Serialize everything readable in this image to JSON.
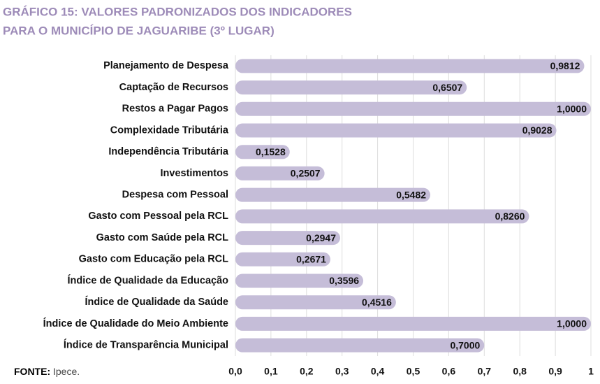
{
  "chart_data": {
    "type": "bar",
    "orientation": "horizontal",
    "title": [
      "GRÁFICO 15: VALORES PADRONIZADOS DOS INDICADORES",
      "PARA O MUNICÍPIO DE JAGUARIBE (3º LUGAR)"
    ],
    "categories": [
      "Planejamento de Despesa",
      "Captação de Recursos",
      "Restos a Pagar Pagos",
      "Complexidade Tributária",
      "Independência Tributária",
      "Investimentos",
      "Despesa com Pessoal",
      "Gasto com Pessoal pela RCL",
      "Gasto com Saúde pela RCL",
      "Gasto com Educação pela RCL",
      "Índice de Qualidade da Educação",
      "Índice de Qualidade da Saúde",
      "Índice de Qualidade do Meio Ambiente",
      "Índice de Transparência Municipal"
    ],
    "values": [
      0.9812,
      0.6507,
      1.0,
      0.9028,
      0.1528,
      0.2507,
      0.5482,
      0.826,
      0.2947,
      0.2671,
      0.3596,
      0.4516,
      1.0,
      0.7
    ],
    "value_labels": [
      "0,9812",
      "0,6507",
      "1,0000",
      "0,9028",
      "0,1528",
      "0,2507",
      "0,5482",
      "0,8260",
      "0,2947",
      "0,2671",
      "0,3596",
      "0,4516",
      "1,0000",
      "0,7000"
    ],
    "color": "#c5bdd8",
    "xlim": [
      0,
      1
    ],
    "xticks": [
      {
        "value": 0,
        "label": "0,0"
      },
      {
        "value": 0.1,
        "label": "0,1"
      },
      {
        "value": 0.2,
        "label": "0,2"
      },
      {
        "value": 0.3,
        "label": "0,3"
      },
      {
        "value": 0.4,
        "label": "0,4"
      },
      {
        "value": 0.5,
        "label": "0,5"
      },
      {
        "value": 0.6,
        "label": "0,6"
      },
      {
        "value": 0.7,
        "label": "0,7"
      },
      {
        "value": 0.8,
        "label": "0,8"
      },
      {
        "value": 0.9,
        "label": "0,9"
      },
      1
    ],
    "grid": true,
    "source_label": "FONTE:",
    "source": "Ipece."
  }
}
